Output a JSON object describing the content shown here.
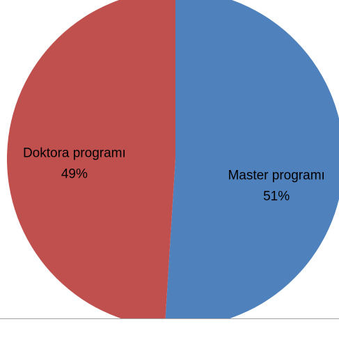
{
  "chart_data": {
    "type": "pie",
    "categories": [
      "Master programı",
      "Doktora programı"
    ],
    "values": [
      51,
      49
    ],
    "value_labels": [
      "51%",
      "49%"
    ],
    "colors": [
      "#4f81bd",
      "#c0504d"
    ]
  }
}
